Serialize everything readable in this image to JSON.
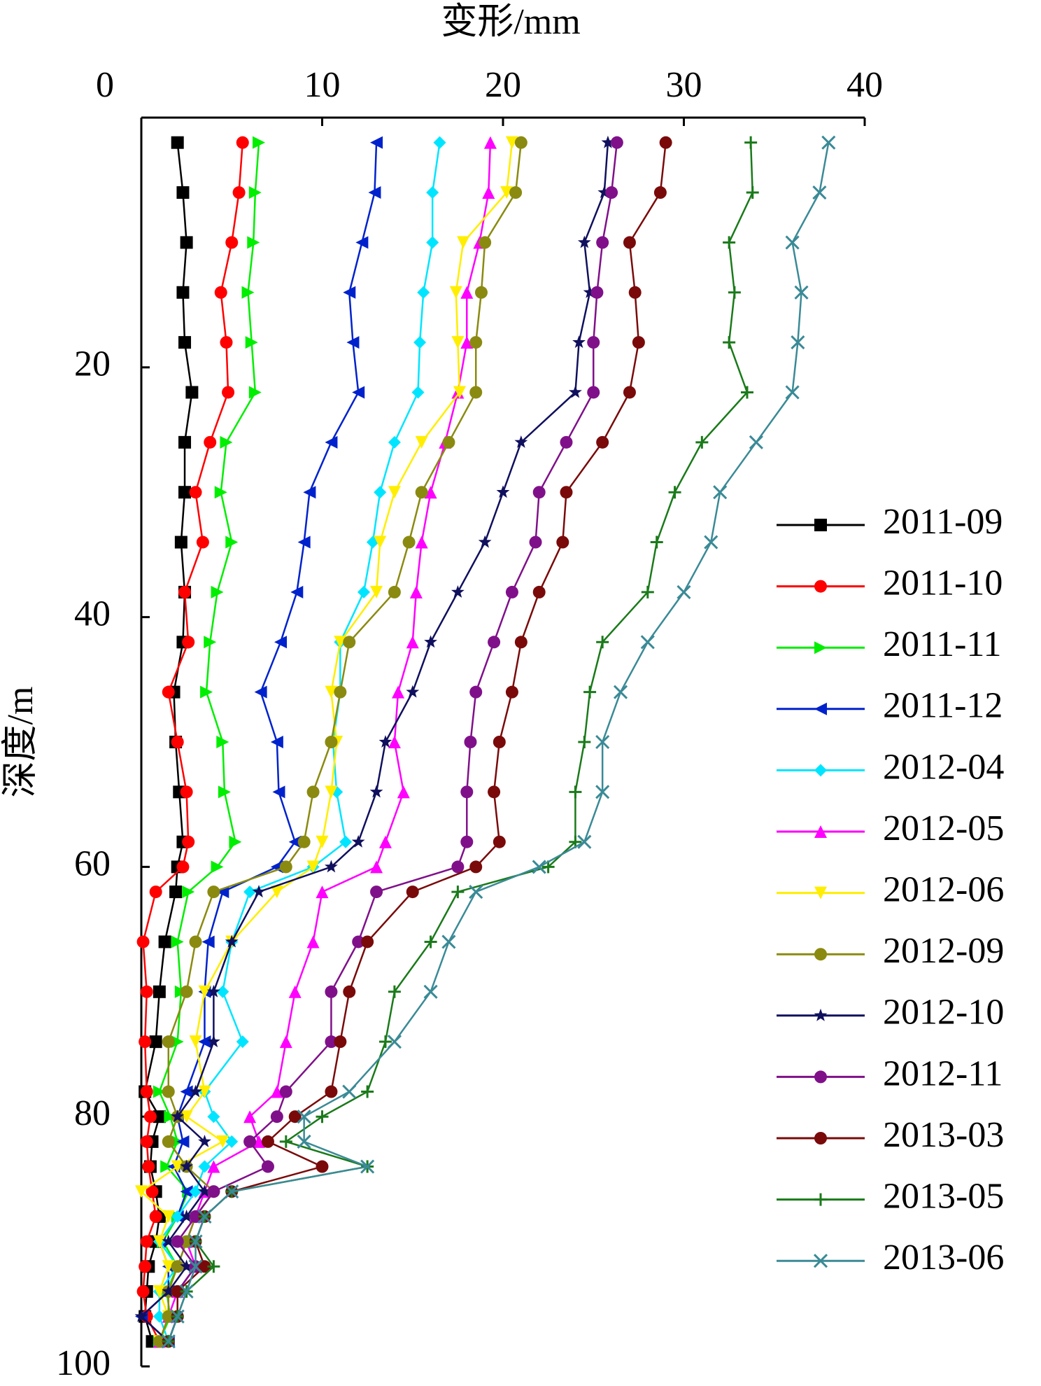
{
  "chart_data": {
    "type": "line",
    "title": "变形/mm",
    "y_label": "深度/m",
    "xlim": [
      0,
      40
    ],
    "xticks": [
      0,
      10,
      20,
      30,
      40
    ],
    "ylim": [
      0,
      100
    ],
    "yticks": [
      20,
      40,
      60,
      80,
      100
    ],
    "y_inverted": true,
    "x_axis_position": "top",
    "legend_position": "right",
    "y": [
      2,
      6,
      10,
      14,
      18,
      22,
      26,
      30,
      34,
      38,
      42,
      46,
      50,
      54,
      58,
      60,
      62,
      66,
      70,
      74,
      78,
      80,
      82,
      84,
      86,
      88,
      90,
      92,
      94,
      96,
      98
    ],
    "series": [
      {
        "name": "2011-09",
        "color": "#000000",
        "marker": "square",
        "values": [
          2.0,
          2.3,
          2.5,
          2.3,
          2.4,
          2.8,
          2.4,
          2.4,
          2.2,
          2.4,
          2.3,
          1.8,
          1.9,
          2.1,
          2.3,
          2.0,
          1.9,
          1.3,
          1.0,
          0.8,
          0.2,
          1.0,
          0.6,
          0.5,
          0.8,
          1.0,
          0.8,
          0.4,
          0.3,
          0.2,
          0.6
        ]
      },
      {
        "name": "2011-10",
        "color": "#ff0000",
        "marker": "circle",
        "values": [
          5.6,
          5.4,
          5.0,
          4.4,
          4.7,
          4.8,
          3.8,
          3.0,
          3.4,
          2.4,
          2.6,
          1.5,
          2.0,
          2.5,
          2.6,
          2.3,
          0.8,
          0.1,
          0.3,
          0.2,
          0.3,
          0.5,
          0.3,
          0.4,
          0.6,
          0.8,
          0.3,
          0.2,
          0.1,
          0.3,
          1.0
        ]
      },
      {
        "name": "2011-11",
        "color": "#00ee00",
        "marker": "triangle-right",
        "values": [
          6.5,
          6.3,
          6.2,
          5.9,
          6.1,
          6.3,
          4.7,
          4.4,
          5.0,
          4.2,
          3.8,
          3.6,
          4.5,
          4.6,
          5.2,
          4.2,
          2.6,
          2.0,
          2.2,
          2.0,
          1.0,
          1.6,
          2.0,
          1.4,
          2.6,
          2.0,
          1.2,
          2.0,
          1.4,
          1.6,
          1.0
        ]
      },
      {
        "name": "2011-12",
        "color": "#0022cc",
        "marker": "triangle-left",
        "values": [
          13.0,
          12.9,
          12.2,
          11.5,
          11.7,
          12.0,
          10.5,
          9.3,
          9.0,
          8.6,
          7.7,
          6.6,
          7.5,
          7.6,
          8.5,
          7.5,
          4.5,
          3.7,
          3.5,
          3.5,
          2.5,
          2.0,
          2.3,
          1.8,
          2.5,
          2.0,
          1.0,
          1.5,
          1.5,
          0.0,
          1.5
        ]
      },
      {
        "name": "2012-04",
        "color": "#00e5ff",
        "marker": "diamond",
        "values": [
          16.5,
          16.1,
          16.1,
          15.6,
          15.4,
          15.3,
          14.0,
          13.2,
          12.8,
          12.3,
          11.0,
          11.0,
          10.6,
          10.8,
          11.3,
          9.5,
          6.0,
          5.0,
          4.5,
          5.6,
          3.5,
          4.0,
          5.0,
          3.5,
          3.0,
          2.0,
          1.0,
          2.0,
          1.0,
          1.0,
          1.5
        ]
      },
      {
        "name": "2012-05",
        "color": "#ff00ff",
        "marker": "triangle-up",
        "values": [
          19.3,
          19.2,
          18.7,
          18.0,
          18.0,
          17.5,
          16.8,
          16.0,
          15.5,
          15.2,
          15.0,
          14.2,
          14.0,
          14.5,
          13.5,
          13.0,
          10.0,
          9.5,
          8.5,
          8.0,
          7.5,
          6.0,
          6.5,
          4.0,
          3.5,
          3.0,
          2.5,
          3.0,
          2.0,
          1.5,
          1.0
        ]
      },
      {
        "name": "2012-06",
        "color": "#ffee00",
        "marker": "triangle-down",
        "values": [
          20.5,
          20.2,
          17.8,
          17.4,
          17.5,
          17.6,
          15.5,
          14.0,
          13.2,
          13.0,
          11.0,
          10.5,
          10.8,
          10.5,
          10.0,
          9.5,
          7.5,
          5.0,
          3.5,
          3.0,
          3.5,
          2.5,
          4.5,
          2.0,
          0.0,
          1.5,
          1.0,
          1.5,
          1.0,
          1.5,
          1.0
        ]
      },
      {
        "name": "2012-09",
        "color": "#8a8a10",
        "marker": "circle",
        "values": [
          21.0,
          20.7,
          19.0,
          18.8,
          18.5,
          18.5,
          17.0,
          15.5,
          14.8,
          14.0,
          11.5,
          11.0,
          10.5,
          9.5,
          9.0,
          8.0,
          4.0,
          3.0,
          2.5,
          1.5,
          1.5,
          2.0,
          1.5,
          2.5,
          4.0,
          3.0,
          2.5,
          2.0,
          1.5,
          1.5,
          1.0
        ]
      },
      {
        "name": "2012-10",
        "color": "#10105e",
        "marker": "star",
        "values": [
          25.8,
          25.6,
          24.5,
          24.8,
          24.2,
          24.0,
          21.0,
          20.0,
          19.0,
          17.5,
          16.0,
          15.0,
          13.5,
          13.0,
          12.0,
          10.5,
          6.5,
          5.0,
          4.0,
          4.0,
          3.0,
          2.0,
          3.5,
          2.5,
          3.5,
          2.5,
          1.5,
          2.5,
          1.5,
          0.0,
          1.5
        ]
      },
      {
        "name": "2012-11",
        "color": "#80108a",
        "marker": "circle",
        "values": [
          26.3,
          26.0,
          25.5,
          25.2,
          25.0,
          25.0,
          23.5,
          22.0,
          21.8,
          20.5,
          19.5,
          18.5,
          18.2,
          18.0,
          18.0,
          17.5,
          13.0,
          12.0,
          10.5,
          10.5,
          8.0,
          7.5,
          6.0,
          7.0,
          4.0,
          3.0,
          2.0,
          3.0,
          2.0,
          2.0,
          1.5
        ]
      },
      {
        "name": "2013-03",
        "color": "#7a0a0a",
        "marker": "circle",
        "values": [
          29.0,
          28.7,
          27.0,
          27.3,
          27.5,
          27.0,
          25.5,
          23.5,
          23.3,
          22.0,
          21.0,
          20.5,
          19.8,
          19.5,
          19.8,
          18.5,
          15.0,
          12.5,
          11.5,
          11.0,
          10.5,
          8.5,
          7.0,
          10.0,
          5.0,
          3.5,
          3.0,
          3.5,
          2.0,
          2.0,
          1.5
        ]
      },
      {
        "name": "2013-05",
        "color": "#1a7a1a",
        "marker": "plus",
        "values": [
          33.7,
          33.8,
          32.5,
          32.8,
          32.5,
          33.5,
          31.0,
          29.5,
          28.5,
          28.0,
          25.5,
          24.8,
          24.5,
          24.0,
          24.0,
          22.5,
          17.5,
          16.0,
          14.0,
          13.5,
          12.5,
          10.0,
          8.0,
          12.5,
          5.0,
          3.5,
          3.0,
          4.0,
          2.5,
          2.0,
          1.5
        ]
      },
      {
        "name": "2013-06",
        "color": "#3a8a96",
        "marker": "x",
        "values": [
          38.0,
          37.5,
          36.0,
          36.5,
          36.3,
          36.0,
          34.0,
          32.0,
          31.5,
          30.0,
          28.0,
          26.5,
          25.5,
          25.5,
          24.5,
          22.0,
          18.5,
          17.0,
          16.0,
          14.0,
          11.5,
          9.0,
          9.0,
          12.5,
          5.0,
          3.5,
          3.0,
          3.0,
          2.5,
          2.0,
          1.5
        ]
      }
    ]
  }
}
